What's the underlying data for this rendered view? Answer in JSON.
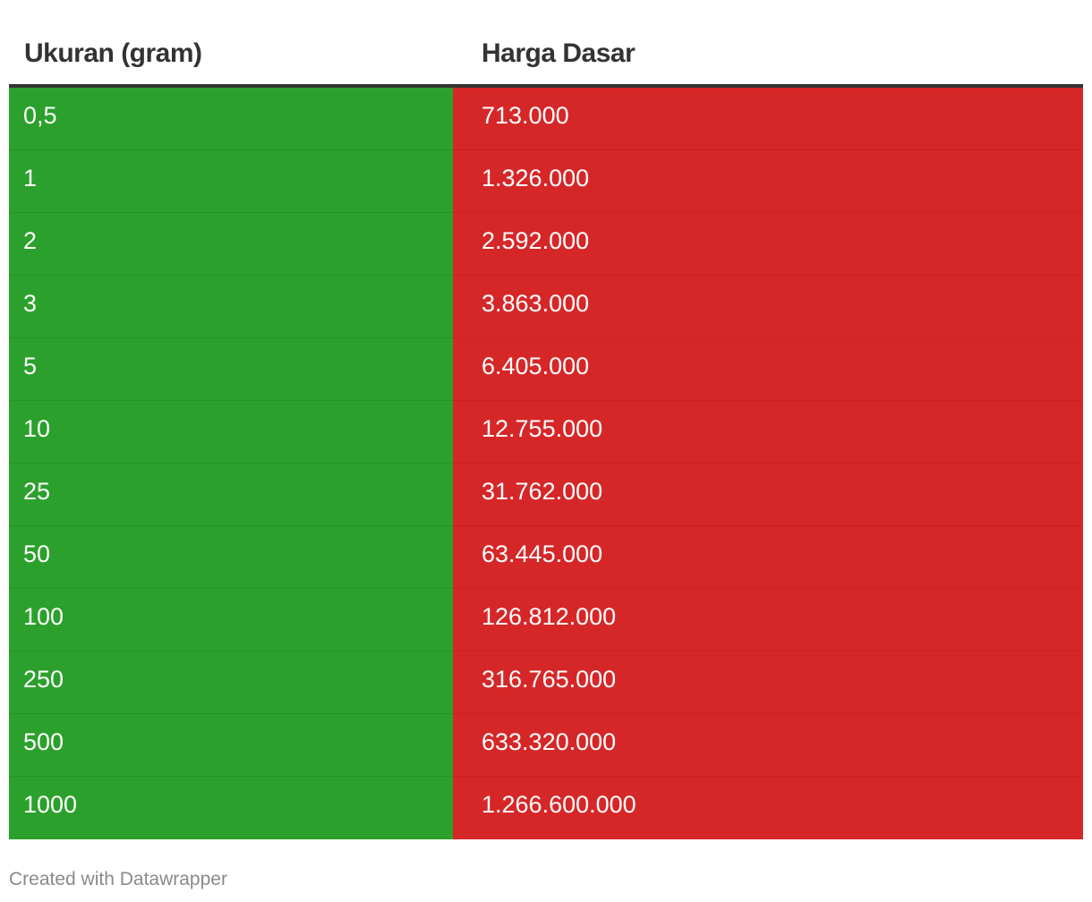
{
  "chart_data": {
    "type": "table",
    "columns": [
      "Ukuran (gram)",
      "Harga Dasar"
    ],
    "rows": [
      [
        "0,5",
        "713.000"
      ],
      [
        "1",
        "1.326.000"
      ],
      [
        "2",
        "2.592.000"
      ],
      [
        "3",
        "3.863.000"
      ],
      [
        "5",
        "6.405.000"
      ],
      [
        "10",
        "12.755.000"
      ],
      [
        "25",
        "31.762.000"
      ],
      [
        "50",
        "63.445.000"
      ],
      [
        "100",
        "126.812.000"
      ],
      [
        "250",
        "316.765.000"
      ],
      [
        "500",
        "633.320.000"
      ],
      [
        "1000",
        "1.266.600.000"
      ]
    ],
    "column_colors": [
      "#2ca02c",
      "#d62728"
    ]
  },
  "footer": {
    "credit": "Created with Datawrapper"
  }
}
